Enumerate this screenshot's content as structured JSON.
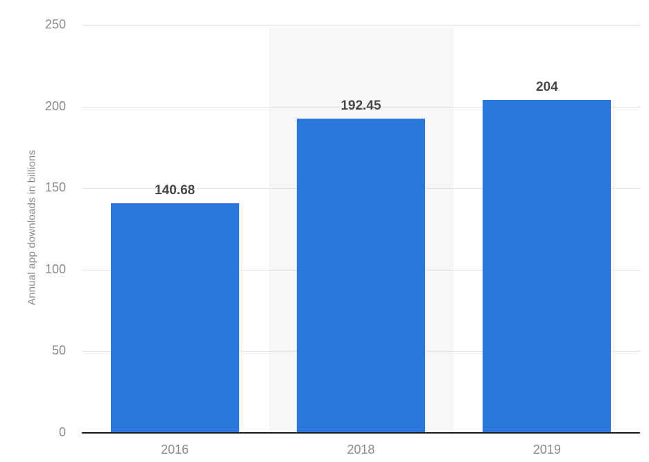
{
  "chart_data": {
    "type": "bar",
    "title": "",
    "xlabel": "",
    "ylabel": "Annual app downloads in billions",
    "categories": [
      "2016",
      "2018",
      "2019"
    ],
    "values": [
      140.68,
      192.45,
      204
    ],
    "value_labels": [
      "140.68",
      "192.45",
      "204"
    ],
    "yticks": [
      0,
      50,
      100,
      150,
      200,
      250
    ],
    "ylim": [
      0,
      250
    ],
    "grid": "horizontal-dotted",
    "legend": "none",
    "highlighted_category": "2018"
  },
  "colors": {
    "bar": "#2b76dd",
    "highlight_band": "#f7f7f7",
    "gridline": "#c9c9c9",
    "axis_line": "#1a1a1a",
    "tick_text": "#8a8a8a",
    "value_text": "#484848",
    "background": "#ffffff"
  }
}
